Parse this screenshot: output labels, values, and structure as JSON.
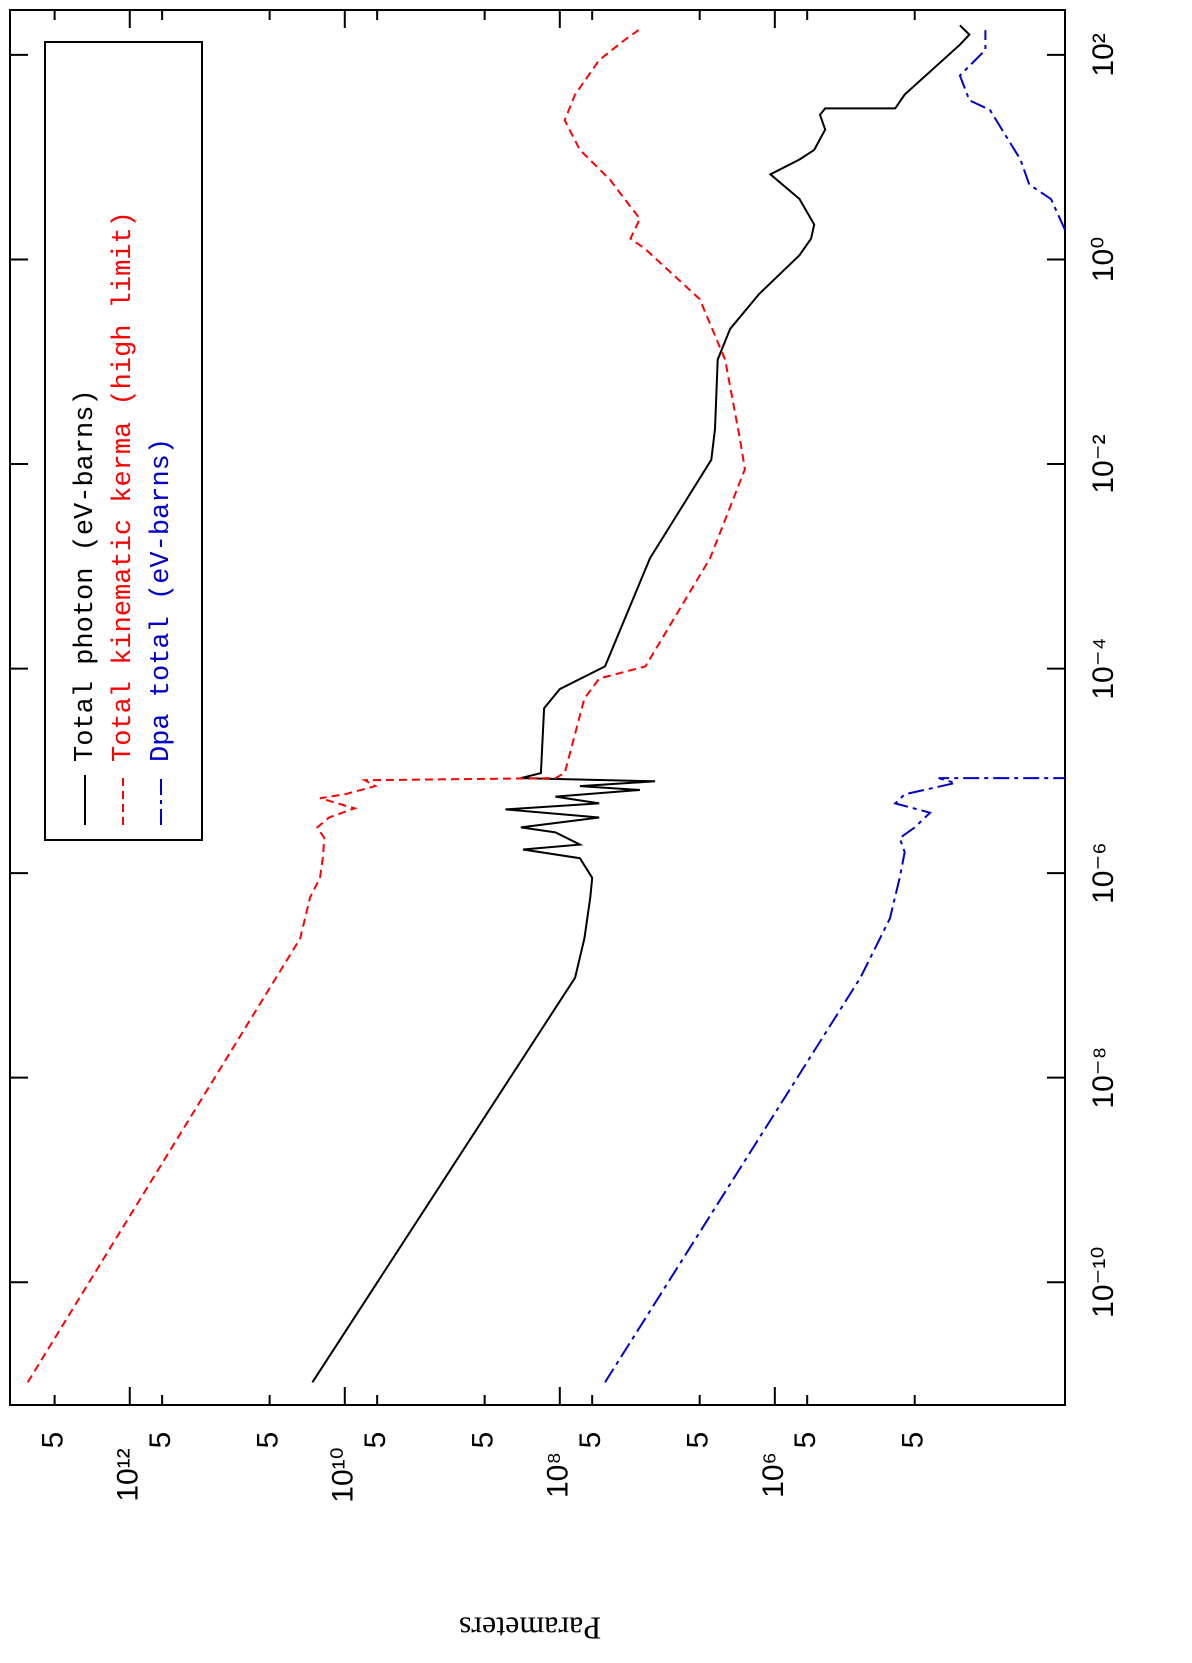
{
  "chart_data": {
    "type": "line",
    "ylabel": "Parameters",
    "xscale": "log",
    "yscale": "log",
    "xlim": [
      6.3e-12,
      275
    ],
    "ylim": [
      2000,
      13000000000000.0
    ],
    "xticks": [
      {
        "value": 1e-10,
        "label": "10⁻¹⁰"
      },
      {
        "value": 1e-08,
        "label": "10⁻⁸"
      },
      {
        "value": 1e-06,
        "label": "10⁻⁶"
      },
      {
        "value": 0.0001,
        "label": "10⁻⁴"
      },
      {
        "value": 0.01,
        "label": "10⁻²"
      },
      {
        "value": 1,
        "label": "10⁰"
      },
      {
        "value": 100,
        "label": "10²"
      }
    ],
    "yticks": [
      {
        "value": 5000000000000.0,
        "label": "5"
      },
      {
        "value": 1000000000000.0,
        "label": "10¹²"
      },
      {
        "value": 500000000000.0,
        "label": "5"
      },
      {
        "value": 50000000000.0,
        "label": "5"
      },
      {
        "value": 10000000000.0,
        "label": "10¹⁰"
      },
      {
        "value": 5000000000.0,
        "label": "5"
      },
      {
        "value": 500000000.0,
        "label": "5"
      },
      {
        "value": 100000000.0,
        "label": "10⁸"
      },
      {
        "value": 50000000.0,
        "label": "5"
      },
      {
        "value": 5000000.0,
        "label": "5"
      },
      {
        "value": 1000000.0,
        "label": "10⁶"
      },
      {
        "value": 500000.0,
        "label": "5"
      },
      {
        "value": 50000.0,
        "label": "5"
      }
    ],
    "legend": "upper left",
    "series": [
      {
        "name": "Total photon (eV-barns)",
        "color": "#000000",
        "linestyle": "solid",
        "x": [
          1.05e-11,
          9.5e-08,
          2.3e-07,
          5.8e-07,
          9e-07,
          1.4e-06,
          1.7e-06,
          1.9e-06,
          2.5e-06,
          2.8e-06,
          3.5e-06,
          4.2e-06,
          4.8e-06,
          5.6e-06,
          6.5e-06,
          7.1e-06,
          7.9e-06,
          8.5e-06,
          9.5e-06,
          4.1e-05,
          6.3e-05,
          0.000105,
          0.0012,
          0.011,
          0.022,
          0.105,
          0.21,
          0.46,
          1.1,
          1.6,
          2.2,
          3.9,
          6.8,
          9.5,
          11.8,
          18.6,
          26,
          30,
          30,
          41,
          126,
          158,
          195
        ],
        "values": [
          20000000000.0,
          72000000.0,
          59000000.0,
          52000000.0,
          50000000.0,
          65000000.0,
          220000000.0,
          65000000.0,
          110000000.0,
          230000000.0,
          43000000.0,
          320000000.0,
          43000000.0,
          110000000.0,
          18000000.0,
          65000000.0,
          13000000.0,
          230000000.0,
          150000000.0,
          140000000.0,
          100000000.0,
          38000000.0,
          14500000.0,
          3900000.0,
          3600000.0,
          3400000.0,
          2600000.0,
          1400000.0,
          590000.0,
          460000.0,
          430000.0,
          590000.0,
          1100000.0,
          590000.0,
          430000.0,
          340000.0,
          380000.0,
          340000.0,
          76000.0,
          62000.0,
          19000.0,
          15500.0,
          19000.0
        ]
      },
      {
        "name": "Total kinematic kerma (high limit)",
        "color": "#ff0000",
        "linestyle": "dashed",
        "x": [
          1.05e-11,
          2.3e-07,
          5.8e-07,
          9e-07,
          1.4e-06,
          2.2e-06,
          2.8e-06,
          3.5e-06,
          4.3e-06,
          5.4e-06,
          5.9e-06,
          7.1e-06,
          8.1e-06,
          8.5e-06,
          9.5e-06,
          5.1e-05,
          8e-05,
          0.000105,
          0.0012,
          0.0089,
          0.017,
          0.105,
          0.41,
          1.26,
          1.6,
          2.5,
          3.9,
          6,
          11.8,
          23,
          41,
          89,
          140,
          175
        ],
        "values": [
          8900000000000.0,
          26000000000.0,
          21000000000.0,
          17000000000.0,
          16000000000.0,
          15500000000.0,
          18000000000.0,
          14000000000.0,
          8100000000.0,
          17000000000.0,
          10000000000.0,
          5200000000.0,
          6500000000.0,
          110000000.0,
          90000000.0,
          59000000.0,
          43000000.0,
          16000000.0,
          4000000.0,
          1900000.0,
          2100000.0,
          2900000.0,
          5000000.0,
          16000000.0,
          22000000.0,
          18000000.0,
          25000000.0,
          34000000.0,
          65000000.0,
          90000000.0,
          72000000.0,
          43000000.0,
          25000000.0,
          18500000.0
        ]
      },
      {
        "name": "Dpa total (eV-barns)",
        "color": "#0000cc",
        "linestyle": "dashdot",
        "x": [
          1.05e-11,
          9.5e-08,
          3.6e-07,
          9e-07,
          1.6e-06,
          2.2e-06,
          2.8e-06,
          3.9e-06,
          4.8e-06,
          5.9e-06,
          7.6e-06,
          8.5e-06,
          8.5e-06,
          null,
          1.95,
          3.9,
          5.4,
          9.5,
          29,
          36,
          63,
          112,
          175
        ],
        "values": [
          38000000.0,
          160000.0,
          85000.0,
          69000.0,
          62000.0,
          69000.0,
          50000.0,
          36000.0,
          76000.0,
          62000.0,
          21000.0,
          30000.0,
          2000,
          null,
          2000,
          2700.0,
          4300.0,
          5200.0,
          10000.0,
          15500.0,
          19000.0,
          11000.0,
          11000.0
        ]
      }
    ]
  }
}
